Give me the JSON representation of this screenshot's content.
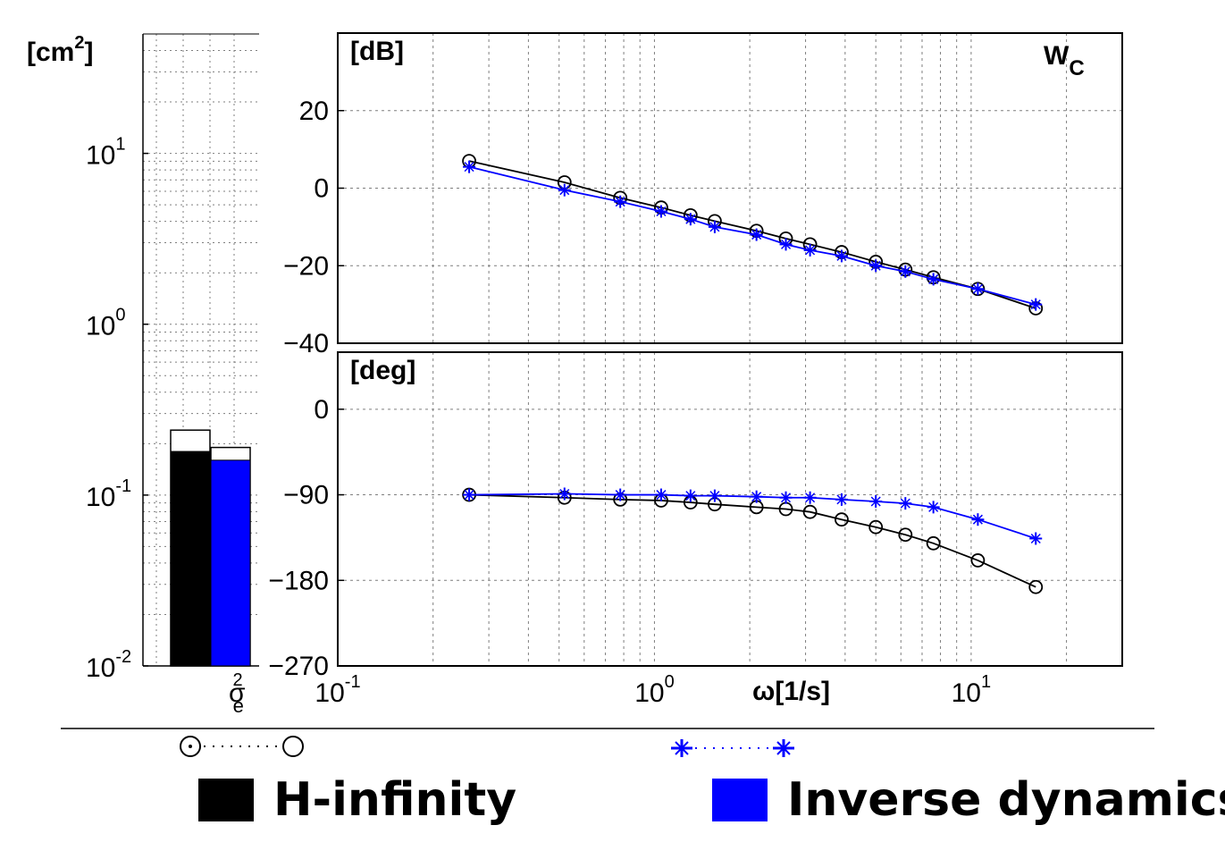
{
  "colors": {
    "hinf": "#000000",
    "invdyn": "#0000ff",
    "grid": "#7f7f7f"
  },
  "chart_data": [
    {
      "type": "bar",
      "name": "variance",
      "ylabel_unit": "[cm",
      "ylabel_sup": "2",
      "ylabel_close": "]",
      "yscale": "log",
      "ylim": [
        0.01,
        50
      ],
      "yticks": [
        {
          "value": 0.01,
          "base": "10",
          "exp": "-2"
        },
        {
          "value": 0.1,
          "base": "10",
          "exp": "-1"
        },
        {
          "value": 1,
          "base": "10",
          "exp": "0"
        },
        {
          "value": 10,
          "base": "10",
          "exp": "1"
        }
      ],
      "xlabel_base": "σ",
      "xlabel_sup": "2",
      "xlabel_sub": "e",
      "series": [
        {
          "name": "H-infinity",
          "value": 0.18,
          "outline_value": 0.24
        },
        {
          "name": "Inverse dynamics",
          "value": 0.16,
          "outline_value": 0.19
        }
      ]
    },
    {
      "type": "line",
      "name": "magnitude",
      "ylabel": "[dB]",
      "annotation_base": "W",
      "annotation_sub": "C",
      "xscale": "log",
      "xlim": [
        0.1,
        30
      ],
      "ylim": [
        -40,
        40
      ],
      "yticks": [
        -40,
        -20,
        0,
        20
      ],
      "ytick_labels": [
        "−40",
        "−20",
        "0",
        "20"
      ],
      "x": [
        0.26,
        0.52,
        0.78,
        1.05,
        1.3,
        1.55,
        2.1,
        2.6,
        3.1,
        3.9,
        5.0,
        6.2,
        7.6,
        10.5,
        16.0
      ],
      "series": [
        {
          "name": "H-infinity",
          "values": [
            7,
            1.5,
            -2.5,
            -5,
            -7,
            -8.5,
            -11,
            -13,
            -14.5,
            -16.5,
            -19,
            -21,
            -23,
            -26,
            -31
          ]
        },
        {
          "name": "Inverse dynamics",
          "values": [
            5.5,
            -0.5,
            -3.5,
            -6,
            -8,
            -10,
            -12,
            -14.5,
            -16,
            -17.5,
            -20,
            -21.5,
            -23.5,
            -26,
            -30
          ]
        }
      ]
    },
    {
      "type": "line",
      "name": "phase",
      "ylabel": "[deg]",
      "xlabel": "ω[1/s]",
      "xscale": "log",
      "xlim": [
        0.1,
        30
      ],
      "ylim": [
        -270,
        60
      ],
      "yticks": [
        -270,
        -180,
        -90,
        0
      ],
      "ytick_labels": [
        "−270",
        "−180",
        "−90",
        "0"
      ],
      "xticks": [
        {
          "value": 0.1,
          "base": "10",
          "exp": "-1"
        },
        {
          "value": 1,
          "base": "10",
          "exp": "0"
        },
        {
          "value": 10,
          "base": "10",
          "exp": "1"
        }
      ],
      "x": [
        0.26,
        0.52,
        0.78,
        1.05,
        1.3,
        1.55,
        2.1,
        2.6,
        3.1,
        3.9,
        5.0,
        6.2,
        7.6,
        10.5,
        16.0
      ],
      "series": [
        {
          "name": "H-infinity",
          "values": [
            -90,
            -93,
            -95,
            -96,
            -98,
            -100,
            -103,
            -105,
            -108,
            -116,
            -124,
            -132,
            -141,
            -159,
            -187
          ]
        },
        {
          "name": "Inverse dynamics",
          "values": [
            -90,
            -89,
            -90,
            -90,
            -91,
            -91,
            -92,
            -93,
            -93,
            -95,
            -97,
            -99,
            -103,
            -116,
            -136
          ]
        }
      ]
    }
  ],
  "legend": {
    "hinf_label": "H-infinity",
    "invdyn_label": "Inverse dynamics"
  }
}
